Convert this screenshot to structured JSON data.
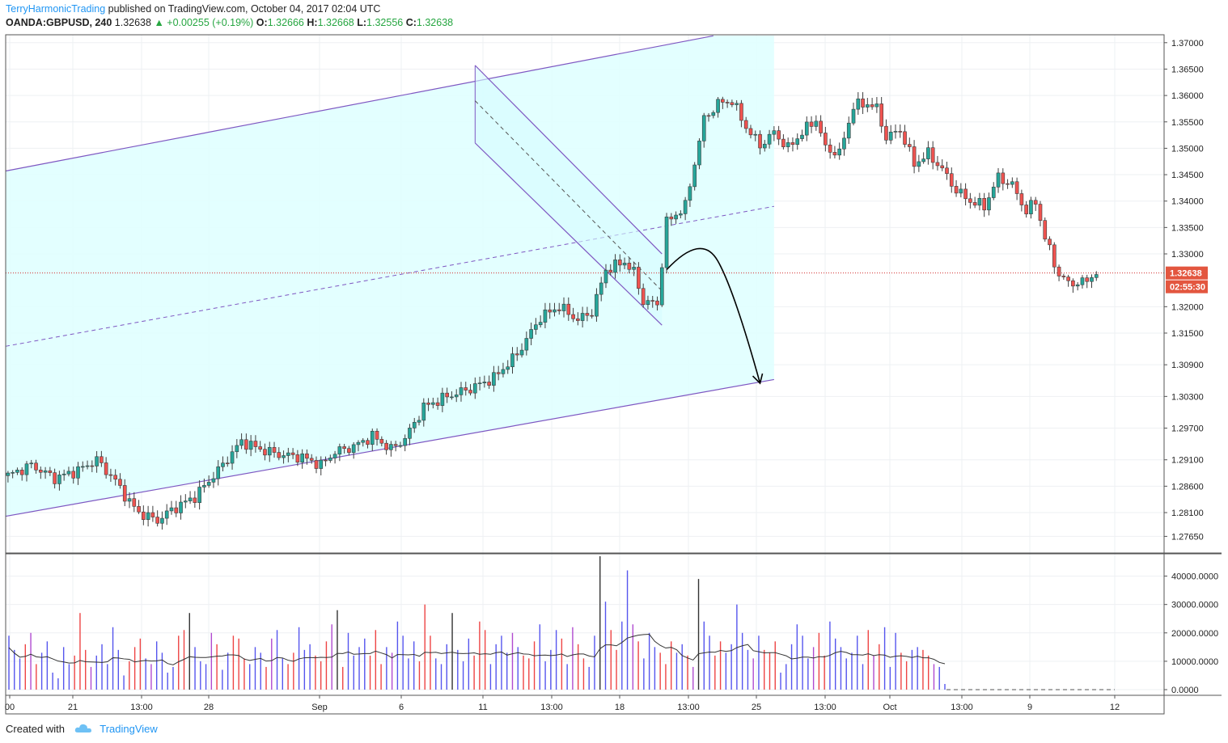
{
  "header": {
    "author": "TerryHarmonicTrading",
    "published_text": "published on TradingView.com, October 04, 2017 02:04 UTC",
    "symbol": "OANDA:GBPUSD, 240",
    "last": "1.32638",
    "change": "▲ +0.00255 (+0.19%)",
    "open_label": "O:",
    "open": "1.32666",
    "high_label": "H:",
    "high": "1.32668",
    "low_label": "L:",
    "low": "1.32556",
    "close_label": "C:",
    "close": "1.32638"
  },
  "footer": {
    "created_with": "Created with",
    "brand": "TradingView",
    "logo_icon": "tradingview-cloud-icon"
  },
  "colors": {
    "up": "#26a69a",
    "down": "#ef5350",
    "channel_line": "#7e57c2",
    "channel_fill": "#e0ffff",
    "price_line": "#d32f2f",
    "volume_up": "#5555ee",
    "volume_down": "#ee4444"
  },
  "chart_data": [
    {
      "type": "candlestick",
      "symbol": "OANDA:GBPUSD",
      "interval": "240",
      "y_ticks": [
        "1.37000",
        "1.36500",
        "1.36000",
        "1.35500",
        "1.35000",
        "1.34500",
        "1.34000",
        "1.33500",
        "1.33000",
        "1.32000",
        "1.31500",
        "1.30900",
        "1.30300",
        "1.29700",
        "1.29100",
        "1.28600",
        "1.28100",
        "1.27650"
      ],
      "ylim": [
        1.2735,
        1.3715
      ],
      "x_ticks": [
        "00",
        "21",
        "13:00",
        "28",
        "Sep",
        "6",
        "11",
        "13:00",
        "18",
        "13:00",
        "25",
        "13:00",
        "Oct",
        "13:00",
        "9",
        "12"
      ],
      "last_price_label": "1.32638",
      "countdown_label": "02:55:30",
      "close_path": [
        {
          "t": 0,
          "c": 1.288
        },
        {
          "t": 5,
          "c": 1.29
        },
        {
          "t": 10,
          "c": 1.2875
        },
        {
          "t": 15,
          "c": 1.289
        },
        {
          "t": 19,
          "c": 1.291
        },
        {
          "t": 23,
          "c": 1.287
        },
        {
          "t": 26,
          "c": 1.283
        },
        {
          "t": 28,
          "c": 1.281
        },
        {
          "t": 32,
          "c": 1.2795
        },
        {
          "t": 35,
          "c": 1.2815
        },
        {
          "t": 40,
          "c": 1.284
        },
        {
          "t": 45,
          "c": 1.289
        },
        {
          "t": 50,
          "c": 1.2945
        },
        {
          "t": 54,
          "c": 1.293
        },
        {
          "t": 58,
          "c": 1.292
        },
        {
          "t": 63,
          "c": 1.2915
        },
        {
          "t": 67,
          "c": 1.29
        },
        {
          "t": 70,
          "c": 1.2925
        },
        {
          "t": 74,
          "c": 1.2935
        },
        {
          "t": 78,
          "c": 1.2955
        },
        {
          "t": 82,
          "c": 1.293
        },
        {
          "t": 85,
          "c": 1.295
        },
        {
          "t": 89,
          "c": 1.301
        },
        {
          "t": 94,
          "c": 1.303
        },
        {
          "t": 99,
          "c": 1.3045
        },
        {
          "t": 104,
          "c": 1.3065
        },
        {
          "t": 109,
          "c": 1.311
        },
        {
          "t": 114,
          "c": 1.318
        },
        {
          "t": 118,
          "c": 1.32
        },
        {
          "t": 122,
          "c": 1.3175
        },
        {
          "t": 125,
          "c": 1.319
        },
        {
          "t": 128,
          "c": 1.327
        },
        {
          "t": 132,
          "c": 1.3285
        },
        {
          "t": 134,
          "c": 1.3265
        },
        {
          "t": 136,
          "c": 1.321
        },
        {
          "t": 139,
          "c": 1.3205
        },
        {
          "t": 141,
          "c": 1.336
        },
        {
          "t": 145,
          "c": 1.339
        },
        {
          "t": 149,
          "c": 1.3555
        },
        {
          "t": 152,
          "c": 1.3585
        },
        {
          "t": 155,
          "c": 1.359
        },
        {
          "t": 158,
          "c": 1.354
        },
        {
          "t": 161,
          "c": 1.3505
        },
        {
          "t": 164,
          "c": 1.353
        },
        {
          "t": 167,
          "c": 1.35
        },
        {
          "t": 170,
          "c": 1.353
        },
        {
          "t": 173,
          "c": 1.3555
        },
        {
          "t": 175,
          "c": 1.35
        },
        {
          "t": 178,
          "c": 1.349
        },
        {
          "t": 181,
          "c": 1.358
        },
        {
          "t": 184,
          "c": 1.3585
        },
        {
          "t": 186,
          "c": 1.3575
        },
        {
          "t": 188,
          "c": 1.352
        },
        {
          "t": 191,
          "c": 1.3535
        },
        {
          "t": 194,
          "c": 1.347
        },
        {
          "t": 197,
          "c": 1.349
        },
        {
          "t": 200,
          "c": 1.346
        },
        {
          "t": 203,
          "c": 1.342
        },
        {
          "t": 206,
          "c": 1.34
        },
        {
          "t": 209,
          "c": 1.339
        },
        {
          "t": 212,
          "c": 1.3445
        },
        {
          "t": 215,
          "c": 1.343
        },
        {
          "t": 218,
          "c": 1.338
        },
        {
          "t": 220,
          "c": 1.34
        },
        {
          "t": 222,
          "c": 1.333
        },
        {
          "t": 225,
          "c": 1.326
        },
        {
          "t": 227,
          "c": 1.3245
        },
        {
          "t": 230,
          "c": 1.3245
        },
        {
          "t": 233,
          "c": 1.3264
        }
      ],
      "drawings": [
        {
          "type": "channel",
          "name": "ascending-channel",
          "upper": [
            [
              0,
              1.3457
            ],
            [
              151,
              1.3713
            ]
          ],
          "lower": [
            [
              0,
              1.2803
            ],
            [
              164,
              1.3062
            ]
          ],
          "median_dashed": [
            [
              0,
              1.3125
            ],
            [
              164,
              1.339
            ]
          ]
        },
        {
          "type": "channel",
          "name": "descending-channel",
          "upper": [
            [
              100,
              1.3657
            ],
            [
              140,
              1.33
            ]
          ],
          "lower": [
            [
              100,
              1.351
            ],
            [
              140,
              1.3165
            ]
          ],
          "median_dashed": [
            [
              100,
              1.359
            ],
            [
              140,
              1.323
            ]
          ]
        },
        {
          "type": "arrow",
          "name": "projection-arrow",
          "from": [
            141,
            1.327
          ],
          "via": [
            145,
            1.331
          ],
          "to": [
            161,
            1.3055
          ]
        }
      ]
    },
    {
      "type": "bar",
      "name": "volume",
      "y_ticks": [
        "40000.0000",
        "30000.0000",
        "20000.0000",
        "10000.0000",
        "0.0000"
      ],
      "ylim": [
        0,
        47000
      ],
      "volume_values": [
        19000,
        14000,
        11000,
        16000,
        20000,
        9000,
        13000,
        17000,
        6000,
        4000,
        15000,
        9000,
        12000,
        27000,
        14000,
        8000,
        12000,
        16000,
        9000,
        22000,
        14000,
        5000,
        10000,
        15000,
        18000,
        11000,
        9000,
        17000,
        13000,
        6000,
        8000,
        19000,
        21000,
        27000,
        15000,
        10000,
        9000,
        20000,
        16000,
        7000,
        13000,
        19000,
        18000,
        11000,
        9000,
        15000,
        13000,
        8000,
        18000,
        21000,
        11000,
        9000,
        13000,
        22000,
        14000,
        16000,
        12000,
        10000,
        17000,
        23000,
        28000,
        8000,
        20000,
        12000,
        15000,
        18000,
        12000,
        21000,
        9000,
        15000,
        13000,
        24000,
        19000,
        11000,
        17000,
        10000,
        30000,
        19000,
        11000,
        9000,
        16000,
        27000,
        14000,
        10000,
        18000,
        12000,
        24000,
        21000,
        9000,
        16000,
        19000,
        13000,
        20000,
        15000,
        12000,
        11000,
        17000,
        23000,
        10000,
        14000,
        21000,
        18000,
        9000,
        22000,
        16000,
        11000,
        8000,
        19000,
        47000,
        31000,
        21000,
        14000,
        24000,
        42000,
        23000,
        17000,
        11000,
        20000,
        15000,
        13000,
        9000,
        17000,
        13000,
        16000,
        12000,
        8000,
        39000,
        24000,
        19000,
        12000,
        17000,
        13000,
        16000,
        30000,
        20000,
        14000,
        11000,
        19000,
        14000,
        13000,
        17000,
        6000,
        9000,
        16000,
        23000,
        19000,
        11000,
        15000,
        20000,
        12000,
        24000,
        18000,
        15000,
        11000,
        13000,
        19000,
        9000,
        21000,
        12000,
        16000,
        22000,
        8000,
        20000,
        13000,
        10000,
        14000,
        15000,
        14000,
        12000,
        9000,
        8000,
        2000
      ]
    }
  ]
}
